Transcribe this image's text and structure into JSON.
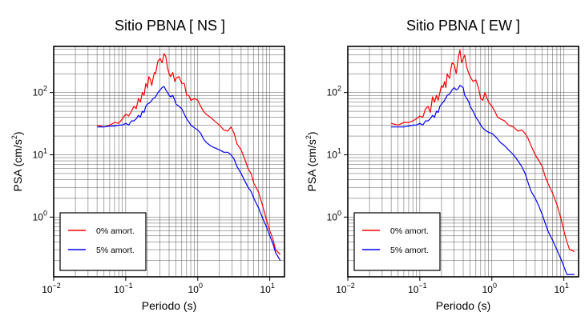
{
  "chart_data": [
    {
      "type": "line",
      "title": "Sitio PBNA [ NS ]",
      "xlabel": "Periodo (s)",
      "ylabel": "PSA (cm/s²)",
      "ylabel_base": "PSA (cm/s",
      "ylabel_exp": "2",
      "ylabel_close": ")",
      "x_scale": "log",
      "y_scale": "log",
      "xlim": [
        0.01,
        16
      ],
      "ylim": [
        0.11,
        550
      ],
      "grid": true,
      "legend_position": "bottom-left",
      "x_ticks": [
        {
          "base": "10",
          "exp": "−2",
          "value": 0.01
        },
        {
          "base": "10",
          "exp": "−1",
          "value": 0.1
        },
        {
          "base": "10",
          "exp": "0",
          "value": 1
        },
        {
          "base": "10",
          "exp": "1",
          "value": 10
        }
      ],
      "y_ticks": [
        {
          "base": "10",
          "exp": "0",
          "value": 1
        },
        {
          "base": "10",
          "exp": "1",
          "value": 10
        },
        {
          "base": "10",
          "exp": "2",
          "value": 100
        }
      ],
      "series": [
        {
          "name": "0% amort.",
          "color": "#ff0000",
          "x": [
            0.04,
            0.05,
            0.06,
            0.07,
            0.08,
            0.09,
            0.1,
            0.11,
            0.12,
            0.13,
            0.14,
            0.15,
            0.16,
            0.17,
            0.18,
            0.19,
            0.2,
            0.21,
            0.22,
            0.23,
            0.24,
            0.25,
            0.26,
            0.27,
            0.28,
            0.3,
            0.32,
            0.34,
            0.36,
            0.38,
            0.4,
            0.42,
            0.45,
            0.48,
            0.5,
            0.55,
            0.6,
            0.65,
            0.7,
            0.75,
            0.8,
            0.9,
            1.0,
            1.1,
            1.2,
            1.3,
            1.5,
            1.7,
            2.0,
            2.3,
            2.6,
            2.9,
            3.2,
            3.5,
            4.0,
            4.5,
            5.0,
            5.5,
            6.0,
            7.0,
            8.0,
            9.0,
            10.0,
            11.0,
            12.0,
            14.0
          ],
          "y": [
            30,
            28,
            30,
            33,
            32,
            38,
            45,
            42,
            50,
            60,
            55,
            80,
            70,
            100,
            90,
            140,
            120,
            180,
            160,
            130,
            170,
            210,
            200,
            260,
            320,
            350,
            300,
            420,
            380,
            250,
            200,
            180,
            210,
            150,
            170,
            180,
            140,
            140,
            90,
            90,
            75,
            80,
            75,
            60,
            50,
            45,
            40,
            35,
            30,
            25,
            24,
            28,
            22,
            15,
            12,
            8.5,
            6,
            5,
            3.5,
            2.5,
            1.5,
            0.9,
            0.6,
            0.45,
            0.3,
            0.25
          ]
        },
        {
          "name": "5% amort.",
          "color": "#0000ff",
          "x": [
            0.04,
            0.05,
            0.06,
            0.07,
            0.08,
            0.09,
            0.1,
            0.11,
            0.12,
            0.13,
            0.14,
            0.15,
            0.16,
            0.17,
            0.18,
            0.19,
            0.2,
            0.22,
            0.24,
            0.26,
            0.28,
            0.3,
            0.32,
            0.34,
            0.36,
            0.38,
            0.4,
            0.42,
            0.45,
            0.48,
            0.5,
            0.55,
            0.6,
            0.65,
            0.7,
            0.75,
            0.8,
            0.9,
            1.0,
            1.1,
            1.2,
            1.3,
            1.5,
            1.7,
            2.0,
            2.3,
            2.6,
            2.9,
            3.2,
            3.5,
            4.0,
            4.5,
            5.0,
            5.5,
            6.0,
            7.0,
            8.0,
            9.0,
            10.0,
            11.0,
            12.0,
            14.0
          ],
          "y": [
            28,
            28,
            29,
            29,
            30,
            30,
            32,
            30,
            35,
            35,
            38,
            43,
            40,
            50,
            48,
            60,
            65,
            70,
            80,
            85,
            100,
            110,
            120,
            125,
            110,
            100,
            90,
            85,
            90,
            75,
            65,
            60,
            55,
            45,
            38,
            34,
            30,
            27,
            25,
            22,
            18,
            16,
            14,
            13,
            12,
            11,
            11,
            10,
            8.5,
            6.5,
            5,
            3.8,
            3.0,
            2.6,
            2.0,
            1.4,
            0.95,
            0.7,
            0.5,
            0.38,
            0.27,
            0.2
          ]
        }
      ]
    },
    {
      "type": "line",
      "title": "Sitio PBNA [ EW ]",
      "xlabel": "Periodo (s)",
      "ylabel": "PSA (cm/s²)",
      "ylabel_base": "PSA (cm/s",
      "ylabel_exp": "2",
      "ylabel_close": ")",
      "x_scale": "log",
      "y_scale": "log",
      "xlim": [
        0.01,
        16
      ],
      "ylim": [
        0.11,
        550
      ],
      "grid": true,
      "legend_position": "bottom-left",
      "x_ticks": [
        {
          "base": "10",
          "exp": "−2",
          "value": 0.01
        },
        {
          "base": "10",
          "exp": "−1",
          "value": 0.1
        },
        {
          "base": "10",
          "exp": "0",
          "value": 1
        },
        {
          "base": "10",
          "exp": "1",
          "value": 10
        }
      ],
      "y_ticks": [
        {
          "base": "10",
          "exp": "0",
          "value": 1
        },
        {
          "base": "10",
          "exp": "1",
          "value": 10
        },
        {
          "base": "10",
          "exp": "2",
          "value": 100
        }
      ],
      "series": [
        {
          "name": "0% amort.",
          "color": "#ff0000",
          "x": [
            0.04,
            0.05,
            0.06,
            0.07,
            0.08,
            0.09,
            0.1,
            0.11,
            0.12,
            0.13,
            0.14,
            0.15,
            0.16,
            0.17,
            0.18,
            0.19,
            0.2,
            0.21,
            0.22,
            0.23,
            0.24,
            0.25,
            0.26,
            0.27,
            0.28,
            0.3,
            0.32,
            0.34,
            0.36,
            0.38,
            0.4,
            0.42,
            0.45,
            0.48,
            0.5,
            0.55,
            0.6,
            0.65,
            0.7,
            0.75,
            0.8,
            0.9,
            1.0,
            1.1,
            1.2,
            1.3,
            1.5,
            1.7,
            2.0,
            2.3,
            2.6,
            2.9,
            3.2,
            3.5,
            4.0,
            4.5,
            5.0,
            5.5,
            6.0,
            7.0,
            8.0,
            9.0,
            10.0,
            11.0,
            12.0,
            14.0
          ],
          "y": [
            32,
            30,
            33,
            33,
            35,
            38,
            42,
            40,
            55,
            60,
            48,
            85,
            70,
            90,
            75,
            100,
            130,
            120,
            150,
            120,
            200,
            180,
            170,
            240,
            300,
            280,
            200,
            350,
            480,
            300,
            350,
            400,
            250,
            200,
            180,
            150,
            160,
            120,
            80,
            75,
            100,
            70,
            60,
            50,
            40,
            38,
            35,
            30,
            28,
            24,
            25,
            22,
            18,
            14,
            10,
            8,
            6.5,
            4.5,
            3.5,
            2.4,
            1.6,
            1.0,
            0.6,
            0.4,
            0.3,
            0.28
          ]
        },
        {
          "name": "5% amort.",
          "color": "#0000ff",
          "x": [
            0.04,
            0.05,
            0.06,
            0.07,
            0.08,
            0.09,
            0.1,
            0.11,
            0.12,
            0.13,
            0.14,
            0.15,
            0.16,
            0.17,
            0.18,
            0.19,
            0.2,
            0.22,
            0.24,
            0.26,
            0.28,
            0.3,
            0.32,
            0.34,
            0.36,
            0.38,
            0.4,
            0.42,
            0.45,
            0.48,
            0.5,
            0.55,
            0.6,
            0.65,
            0.7,
            0.75,
            0.8,
            0.9,
            1.0,
            1.1,
            1.2,
            1.3,
            1.5,
            1.7,
            2.0,
            2.3,
            2.6,
            2.9,
            3.2,
            3.5,
            4.0,
            4.5,
            5.0,
            5.5,
            6.0,
            7.0,
            8.0,
            9.0,
            10.0,
            11.0,
            12.0,
            14.0
          ],
          "y": [
            28,
            28,
            28,
            29,
            30,
            30,
            32,
            30,
            35,
            35,
            38,
            43,
            40,
            50,
            48,
            60,
            65,
            75,
            90,
            95,
            110,
            120,
            110,
            115,
            130,
            125,
            120,
            90,
            80,
            70,
            60,
            50,
            40,
            35,
            30,
            27,
            25,
            23,
            22,
            20,
            18,
            16,
            14,
            12,
            10,
            8,
            6.5,
            5,
            3.5,
            2.6,
            2.0,
            1.5,
            1.1,
            0.8,
            0.6,
            0.42,
            0.3,
            0.22,
            0.16,
            0.12,
            0.12,
            0.12
          ]
        }
      ]
    }
  ]
}
